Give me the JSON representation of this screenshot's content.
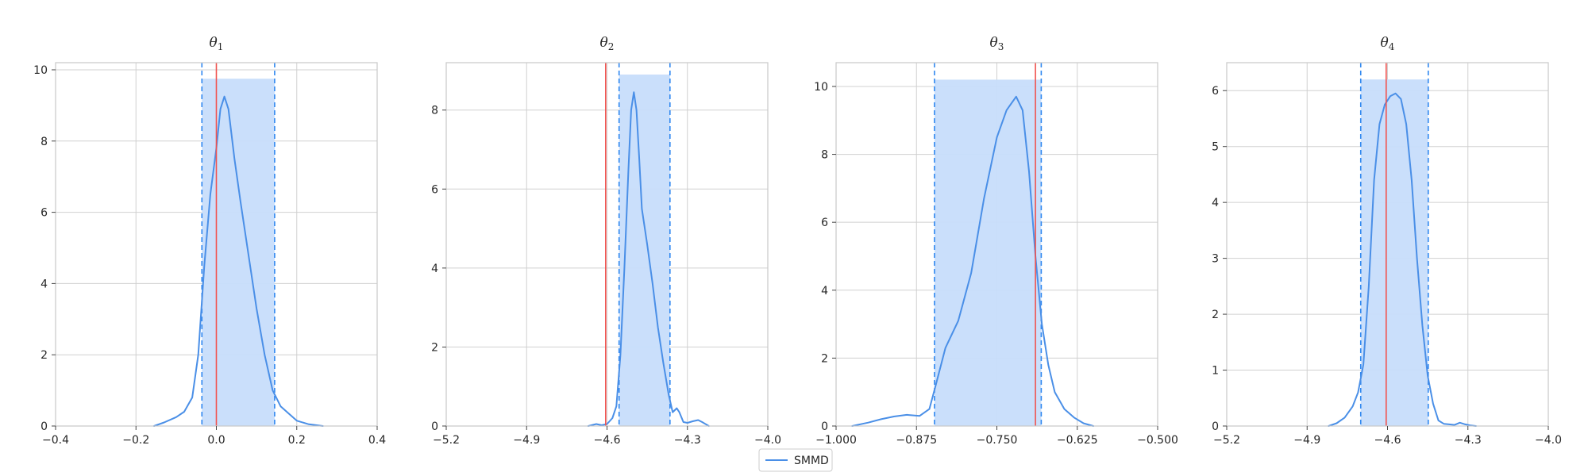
{
  "colors": {
    "kde": "#4a8fe7",
    "band_fill": "#c7ddfb",
    "band_edge": "#2f87f0",
    "truth": "#f0534f",
    "grid": "#d0d0d0",
    "spine": "#c8c8c8"
  },
  "legend": {
    "label": "SMMD",
    "placement": "bottom-center"
  },
  "chart_data": [
    {
      "type": "line",
      "title": "θ",
      "title_sub": "1",
      "xlim": [
        -0.4,
        0.4
      ],
      "ylim": [
        0,
        10.2
      ],
      "xticks": [
        -0.4,
        -0.2,
        0.0,
        0.2,
        0.4
      ],
      "xtick_labels": [
        "−0.4",
        "−0.2",
        "0.0",
        "0.2",
        "0.4"
      ],
      "yticks": [
        0,
        2,
        4,
        6,
        8,
        10
      ],
      "ytick_labels": [
        "0",
        "2",
        "4",
        "6",
        "8",
        "10"
      ],
      "grid": true,
      "true_value": 0.0,
      "interval": [
        -0.036,
        0.145
      ],
      "band_height": 9.75,
      "series": [
        {
          "name": "SMMD",
          "x": [
            -0.155,
            -0.13,
            -0.1,
            -0.08,
            -0.06,
            -0.045,
            -0.03,
            -0.015,
            0.0,
            0.01,
            0.02,
            0.03,
            0.045,
            0.06,
            0.08,
            0.1,
            0.12,
            0.14,
            0.16,
            0.18,
            0.2,
            0.23,
            0.265
          ],
          "y": [
            0.0,
            0.1,
            0.25,
            0.4,
            0.8,
            2.0,
            4.5,
            6.5,
            7.8,
            8.9,
            9.25,
            8.9,
            7.5,
            6.3,
            4.8,
            3.3,
            2.0,
            1.0,
            0.55,
            0.35,
            0.15,
            0.05,
            0.0
          ]
        }
      ]
    },
    {
      "type": "line",
      "title": "θ",
      "title_sub": "2",
      "xlim": [
        -5.2,
        -4.0
      ],
      "ylim": [
        0,
        9.2
      ],
      "xticks": [
        -5.2,
        -4.9,
        -4.6,
        -4.3,
        -4.0
      ],
      "xtick_labels": [
        "−5.2",
        "−4.9",
        "−4.6",
        "−4.3",
        "−4.0"
      ],
      "yticks": [
        0,
        2,
        4,
        6,
        8
      ],
      "ytick_labels": [
        "0",
        "2",
        "4",
        "6",
        "8"
      ],
      "grid": true,
      "true_value": -4.605,
      "interval": [
        -4.555,
        -4.365
      ],
      "band_height": 8.9,
      "series": [
        {
          "name": "SMMD",
          "x": [
            -4.67,
            -4.64,
            -4.62,
            -4.6,
            -4.58,
            -4.565,
            -4.55,
            -4.535,
            -4.52,
            -4.51,
            -4.5,
            -4.49,
            -4.48,
            -4.47,
            -4.45,
            -4.43,
            -4.41,
            -4.39,
            -4.37,
            -4.355,
            -4.34,
            -4.33,
            -4.315,
            -4.3,
            -4.28,
            -4.26,
            -4.245,
            -4.22
          ],
          "y": [
            0.0,
            0.05,
            0.02,
            0.05,
            0.2,
            0.5,
            1.8,
            4.0,
            6.5,
            8.0,
            8.45,
            8.0,
            6.8,
            5.5,
            4.6,
            3.6,
            2.5,
            1.6,
            0.8,
            0.35,
            0.45,
            0.35,
            0.1,
            0.08,
            0.12,
            0.15,
            0.1,
            0.0
          ]
        }
      ]
    },
    {
      "type": "line",
      "title": "θ",
      "title_sub": "3",
      "xlim": [
        -1.0,
        -0.5
      ],
      "ylim": [
        0,
        10.7
      ],
      "xticks": [
        -1.0,
        -0.875,
        -0.75,
        -0.625,
        -0.5
      ],
      "xtick_labels": [
        "−1.000",
        "−0.875",
        "−0.750",
        "−0.625",
        "−0.500"
      ],
      "yticks": [
        0,
        2,
        4,
        6,
        8,
        10
      ],
      "ytick_labels": [
        "0",
        "2",
        "4",
        "6",
        "8",
        "10"
      ],
      "grid": true,
      "true_value": -0.69,
      "interval": [
        -0.847,
        -0.681
      ],
      "band_height": 10.2,
      "series": [
        {
          "name": "SMMD",
          "x": [
            -0.975,
            -0.95,
            -0.93,
            -0.91,
            -0.89,
            -0.87,
            -0.855,
            -0.845,
            -0.83,
            -0.81,
            -0.79,
            -0.77,
            -0.75,
            -0.735,
            -0.72,
            -0.71,
            -0.7,
            -0.69,
            -0.68,
            -0.67,
            -0.66,
            -0.645,
            -0.63,
            -0.615,
            -0.6
          ],
          "y": [
            0.0,
            0.1,
            0.2,
            0.28,
            0.33,
            0.3,
            0.5,
            1.2,
            2.3,
            3.1,
            4.5,
            6.7,
            8.5,
            9.3,
            9.7,
            9.3,
            7.5,
            5.0,
            3.0,
            1.8,
            1.0,
            0.5,
            0.25,
            0.08,
            0.0
          ]
        }
      ]
    },
    {
      "type": "line",
      "title": "θ",
      "title_sub": "4",
      "xlim": [
        -5.2,
        -4.0
      ],
      "ylim": [
        0,
        6.5
      ],
      "xticks": [
        -5.2,
        -4.9,
        -4.6,
        -4.3,
        -4.0
      ],
      "xtick_labels": [
        "−5.2",
        "−4.9",
        "−4.6",
        "−4.3",
        "−4.0"
      ],
      "yticks": [
        0,
        1,
        2,
        3,
        4,
        5,
        6
      ],
      "ytick_labels": [
        "0",
        "1",
        "2",
        "3",
        "4",
        "5",
        "6"
      ],
      "grid": true,
      "true_value": -4.605,
      "interval": [
        -4.7,
        -4.448
      ],
      "band_height": 6.2,
      "series": [
        {
          "name": "SMMD",
          "x": [
            -4.82,
            -4.79,
            -4.76,
            -4.73,
            -4.71,
            -4.69,
            -4.67,
            -4.65,
            -4.63,
            -4.61,
            -4.59,
            -4.57,
            -4.55,
            -4.53,
            -4.51,
            -4.49,
            -4.47,
            -4.45,
            -4.43,
            -4.41,
            -4.39,
            -4.37,
            -4.35,
            -4.33,
            -4.31,
            -4.29,
            -4.27
          ],
          "y": [
            0.0,
            0.05,
            0.15,
            0.35,
            0.6,
            1.1,
            2.5,
            4.4,
            5.4,
            5.75,
            5.9,
            5.95,
            5.85,
            5.4,
            4.4,
            3.0,
            1.8,
            0.9,
            0.4,
            0.1,
            0.04,
            0.03,
            0.02,
            0.06,
            0.03,
            0.01,
            0.0
          ]
        }
      ]
    }
  ]
}
